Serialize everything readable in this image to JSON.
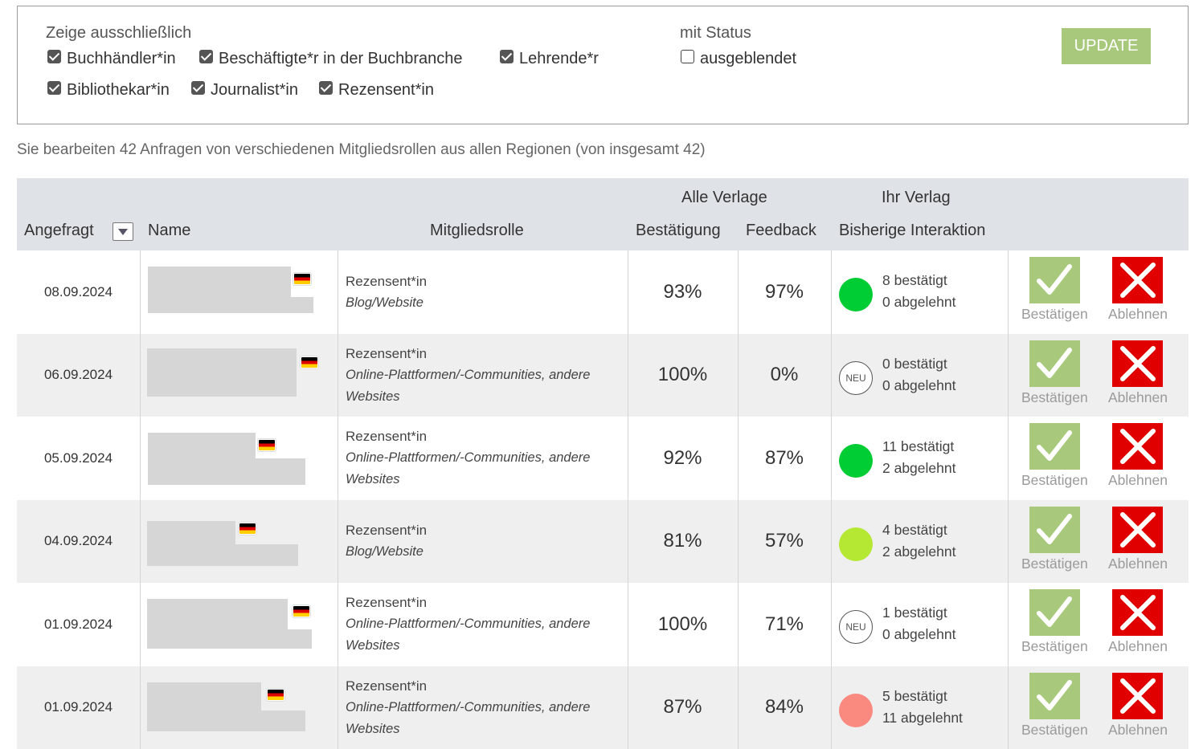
{
  "filter": {
    "show_only_label": "Zeige ausschließlich",
    "status_label": "mit Status",
    "roles": [
      {
        "label": "Buchhändler*in",
        "checked": true
      },
      {
        "label": "Beschäftigte*r in der Buchbranche",
        "checked": true
      },
      {
        "label": "Lehrende*r",
        "checked": true
      },
      {
        "label": "Bibliothekar*in",
        "checked": true
      },
      {
        "label": "Journalist*in",
        "checked": true
      },
      {
        "label": "Rezensent*in",
        "checked": true
      }
    ],
    "status_option": {
      "label": "ausgeblendet",
      "checked": false
    },
    "update_label": "UPDATE"
  },
  "summary": "Sie bearbeiten 42 Anfragen von verschiedenen Mitgliedsrollen aus allen Regionen (von insgesamt 42)",
  "table": {
    "group_all": "Alle Verlage",
    "group_yours": "Ihr Verlag",
    "col_requested": "Angefragt",
    "col_name": "Name",
    "col_role": "Mitgliedsrolle",
    "col_confirmation": "Bestätigung",
    "col_feedback": "Feedback",
    "col_interaction": "Bisherige Interaktion",
    "confirm_label": "Bestätigen",
    "reject_label": "Ablehnen",
    "neu_label": "NEU",
    "rows": [
      {
        "date": "08.09.2024",
        "role": "Rezensent*in",
        "sub1": "Blog/Website",
        "sub2": "",
        "confirm": "93%",
        "feedback": "97%",
        "status": "green",
        "color": "#00cc33",
        "confirmed": "8 bestätigt",
        "rejected": "0 abgelehnt"
      },
      {
        "date": "06.09.2024",
        "role": "Rezensent*in",
        "sub1": "Online-Plattformen/-Communities, andere",
        "sub2": "Websites",
        "confirm": "100%",
        "feedback": "0%",
        "status": "neu",
        "color": "#ffffff",
        "confirmed": "0 bestätigt",
        "rejected": "0 abgelehnt"
      },
      {
        "date": "05.09.2024",
        "role": "Rezensent*in",
        "sub1": "Online-Plattformen/-Communities, andere",
        "sub2": "Websites",
        "confirm": "92%",
        "feedback": "87%",
        "status": "green",
        "color": "#00cc33",
        "confirmed": "11 bestätigt",
        "rejected": "2 abgelehnt"
      },
      {
        "date": "04.09.2024",
        "role": "Rezensent*in",
        "sub1": "Blog/Website",
        "sub2": "",
        "confirm": "81%",
        "feedback": "57%",
        "status": "lime",
        "color": "#b5e833",
        "confirmed": "4 bestätigt",
        "rejected": "2 abgelehnt"
      },
      {
        "date": "01.09.2024",
        "role": "Rezensent*in",
        "sub1": "Online-Plattformen/-Communities, andere",
        "sub2": "Websites",
        "confirm": "100%",
        "feedback": "71%",
        "status": "neu",
        "color": "#ffffff",
        "confirmed": "1 bestätigt",
        "rejected": "0 abgelehnt"
      },
      {
        "date": "01.09.2024",
        "role": "Rezensent*in",
        "sub1": "Online-Plattformen/-Communities, andere",
        "sub2": "Websites",
        "confirm": "87%",
        "feedback": "84%",
        "status": "red",
        "color": "#fa8a80",
        "confirmed": "5 bestätigt",
        "rejected": "11 abgelehnt"
      }
    ]
  },
  "icons": {
    "flag": "germany-flag-icon",
    "confirm": "checkmark-icon",
    "reject": "x-icon",
    "sort": "chevron-down-icon"
  },
  "colors": {
    "accent_green": "#a8c97c",
    "reject_red": "#e00000",
    "header_bg": "#dfe3e8",
    "alt_row_bg": "#efefef"
  }
}
